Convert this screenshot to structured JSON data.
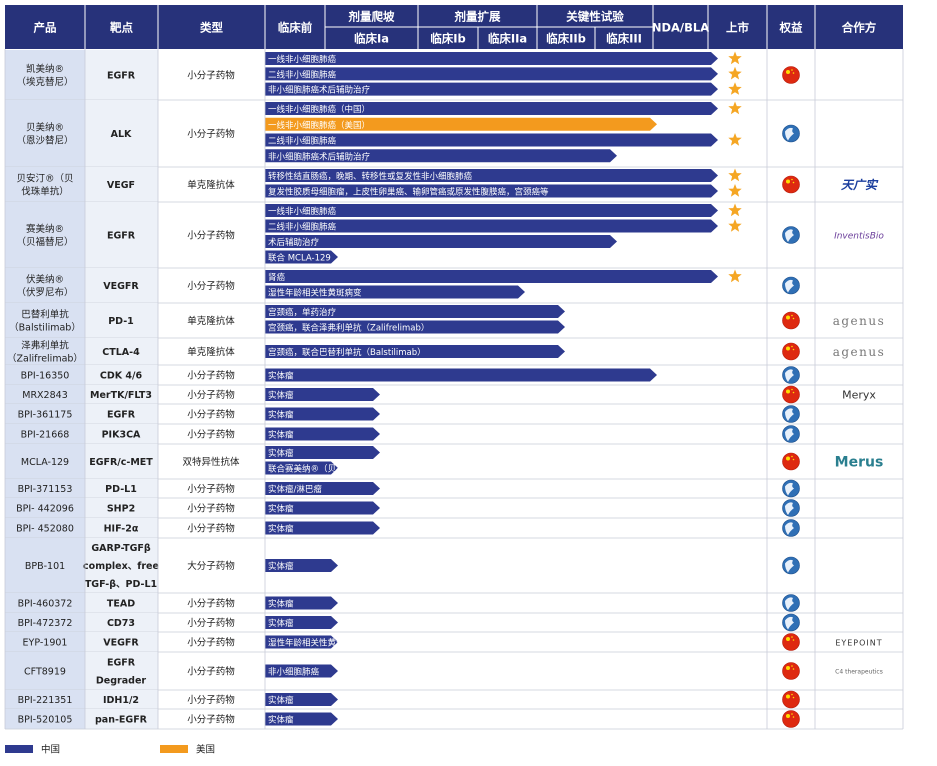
{
  "header": {
    "product": "产品",
    "target": "靶点",
    "type": "类型",
    "preclinical": "临床前",
    "groups": [
      {
        "label": "剂量爬坡",
        "stages": [
          "临床Ia"
        ]
      },
      {
        "label": "剂量扩展",
        "stages": [
          "临床Ib",
          "临床IIa"
        ]
      },
      {
        "label": "关键性试验",
        "stages": [
          "临床IIb",
          "临床III"
        ]
      }
    ],
    "nda": "NDA/BLA",
    "launch": "上市",
    "rights": "权益",
    "partner": "合作方"
  },
  "legend": [
    {
      "label": "中国",
      "color": "#2e3a8f"
    },
    {
      "label": "美国",
      "color": "#f39a1e"
    }
  ],
  "rows": [
    {
      "product": [
        "凯美纳®",
        "（埃克替尼）"
      ],
      "target": "EGFR",
      "type": "小分子药物",
      "rights_icon": "flag-cn",
      "bars": [
        {
          "label": "一线非小细胞肺癌",
          "stage": "上市",
          "region": "中国"
        },
        {
          "label": "二线非小细胞肺癌",
          "stage": "上市",
          "region": "中国"
        },
        {
          "label": "非小细胞肺癌术后辅助治疗",
          "stage": "上市",
          "region": "中国"
        }
      ]
    },
    {
      "product": [
        "贝美纳®",
        "（恩沙替尼）"
      ],
      "target": "ALK",
      "type": "小分子药物",
      "rights_icon": "globe",
      "bars": [
        {
          "label": "一线非小细胞肺癌（中国）",
          "stage": "上市",
          "region": "中国"
        },
        {
          "label": "一线非小细胞肺癌（美国）",
          "stage": "NDA/BLA",
          "region": "美国"
        },
        {
          "label": "二线非小细胞肺癌",
          "stage": "上市",
          "region": "中国"
        },
        {
          "label": "非小细胞肺癌术后辅助治疗",
          "stage": "临床III",
          "region": "中国"
        }
      ]
    },
    {
      "product": [
        "贝安汀®（贝",
        "伐珠单抗）"
      ],
      "target": "VEGF",
      "type": "单克隆抗体",
      "rights_icon": "flag-cn",
      "partner": "天广实",
      "bars": [
        {
          "label": "转移性结直肠癌，晚期、转移性或复发性非小细胞肺癌",
          "stage": "上市",
          "region": "中国"
        },
        {
          "label": "复发性胶质母细胞瘤，上皮性卵巢癌、输卵管癌或原发性腹膜癌，宫颈癌等",
          "stage": "上市",
          "region": "中国"
        }
      ]
    },
    {
      "product": [
        "赛美纳®",
        "（贝福替尼）"
      ],
      "target": "EGFR",
      "type": "小分子药物",
      "rights_icon": "globe",
      "partner": "InventisBio",
      "bars": [
        {
          "label": "一线非小细胞肺癌",
          "stage": "上市",
          "region": "中国"
        },
        {
          "label": "二线非小细胞肺癌",
          "stage": "上市",
          "region": "中国"
        },
        {
          "label": "术后辅助治疗",
          "stage": "临床III",
          "region": "中国"
        },
        {
          "label": "联合 MCLA-129",
          "stage": "临床前",
          "region": "中国"
        }
      ]
    },
    {
      "product": [
        "伏美纳®",
        "（伏罗尼布）"
      ],
      "target": "VEGFR",
      "type": "小分子药物",
      "rights_icon": "globe",
      "bars": [
        {
          "label": "肾癌",
          "stage": "上市",
          "region": "中国"
        },
        {
          "label": "湿性年龄相关性黄斑病变",
          "stage": "临床IIa",
          "region": "中国"
        }
      ]
    },
    {
      "product": [
        "巴替利单抗",
        "（Balstilimab）"
      ],
      "target": "PD-1",
      "type": "单克隆抗体",
      "rights_icon": "flag-cn",
      "partner": "agenus",
      "bars": [
        {
          "label": "宫颈癌，单药治疗",
          "stage": "临床IIb",
          "region": "中国"
        },
        {
          "label": "宫颈癌，联合泽弗利单抗（Zalifrelimab）",
          "stage": "临床IIb",
          "region": "中国"
        }
      ]
    },
    {
      "product": [
        "泽弗利单抗",
        "（Zalifrelimab）"
      ],
      "target": "CTLA-4",
      "type": "单克隆抗体",
      "rights_icon": "flag-cn",
      "partner": "agenus",
      "bars": [
        {
          "label": "宫颈癌，联合巴替利单抗（Balstilimab）",
          "stage": "临床IIb",
          "region": "中国"
        }
      ]
    },
    {
      "product": [
        "BPI-16350"
      ],
      "target": "CDK 4/6",
      "type": "小分子药物",
      "rights_icon": "globe",
      "bars": [
        {
          "label": "实体瘤",
          "stage": "NDA/BLA",
          "region": "中国"
        }
      ]
    },
    {
      "product": [
        "MRX2843"
      ],
      "target": "MerTK/FLT3",
      "type": "小分子药物",
      "rights_icon": "flag-cn",
      "partner": "Meryx",
      "bars": [
        {
          "label": "实体瘤",
          "stage": "临床Ia",
          "region": "中国"
        }
      ]
    },
    {
      "product": [
        "BPI-361175"
      ],
      "target": "EGFR",
      "type": "小分子药物",
      "rights_icon": "globe",
      "bars": [
        {
          "label": "实体瘤",
          "stage": "临床Ia",
          "region": "中国"
        }
      ]
    },
    {
      "product": [
        "BPI-21668"
      ],
      "target": "PIK3CA",
      "type": "小分子药物",
      "rights_icon": "globe",
      "bars": [
        {
          "label": "实体瘤",
          "stage": "临床Ia",
          "region": "中国"
        }
      ]
    },
    {
      "product": [
        "MCLA-129"
      ],
      "target": "EGFR/c-MET",
      "type": "双特异性抗体",
      "rights_icon": "flag-cn",
      "partner": "Merus",
      "bars": [
        {
          "label": "实体瘤",
          "stage": "临床Ia",
          "region": "中国"
        },
        {
          "label": "联合赛美纳®（贝福替尼）",
          "stage": "临床前",
          "region": "中国"
        }
      ]
    },
    {
      "product": [
        "BPI-371153"
      ],
      "target": "PD-L1",
      "type": "小分子药物",
      "rights_icon": "globe",
      "bars": [
        {
          "label": "实体瘤/淋巴瘤",
          "stage": "临床Ia",
          "region": "中国"
        }
      ]
    },
    {
      "product": [
        "BPI- 442096"
      ],
      "target": "SHP2",
      "type": "小分子药物",
      "rights_icon": "globe",
      "bars": [
        {
          "label": "实体瘤",
          "stage": "临床Ia",
          "region": "中国"
        }
      ]
    },
    {
      "product": [
        "BPI- 452080"
      ],
      "target": "HIF-2α",
      "type": "小分子药物",
      "rights_icon": "globe",
      "bars": [
        {
          "label": "实体瘤",
          "stage": "临床Ia",
          "region": "中国"
        }
      ]
    },
    {
      "product": [
        "BPB-101"
      ],
      "target": [
        "GARP-TGFβ",
        "complex、free",
        "TGF-β、PD-L1"
      ],
      "type": "大分子药物",
      "rights_icon": "globe",
      "bars": [
        {
          "label": "实体瘤",
          "stage": "临床前",
          "region": "中国"
        }
      ]
    },
    {
      "product": [
        "BPI-460372"
      ],
      "target": "TEAD",
      "type": "小分子药物",
      "rights_icon": "globe",
      "bars": [
        {
          "label": "实体瘤",
          "stage": "临床前",
          "region": "中国"
        }
      ]
    },
    {
      "product": [
        "BPI-472372"
      ],
      "target": "CD73",
      "type": "小分子药物",
      "rights_icon": "globe",
      "bars": [
        {
          "label": "实体瘤",
          "stage": "临床前",
          "region": "中国"
        }
      ]
    },
    {
      "product": [
        "EYP-1901"
      ],
      "target": "VEGFR",
      "type": "小分子药物",
      "rights_icon": "flag-cn",
      "partner": "EYEPOINT",
      "bars": [
        {
          "label": "湿性年龄相关性黄斑变性",
          "stage": "临床前",
          "region": "中国"
        }
      ]
    },
    {
      "product": [
        "CFT8919"
      ],
      "target": [
        "EGFR",
        "Degrader"
      ],
      "type": "小分子药物",
      "rights_icon": "flag-cn",
      "partner": "C4 therapeutics",
      "bars": [
        {
          "label": "非小细胞肺癌",
          "stage": "临床前",
          "region": "中国"
        }
      ]
    },
    {
      "product": [
        "BPI-221351"
      ],
      "target": "IDH1/2",
      "type": "小分子药物",
      "rights_icon": "flag-cn",
      "bars": [
        {
          "label": "实体瘤",
          "stage": "临床前",
          "region": "中国"
        }
      ]
    },
    {
      "product": [
        "BPI-520105"
      ],
      "target": "pan-EGFR",
      "type": "小分子药物",
      "rights_icon": "flag-cn",
      "bars": [
        {
          "label": "实体瘤",
          "stage": "临床前",
          "region": "中国"
        }
      ]
    }
  ]
}
